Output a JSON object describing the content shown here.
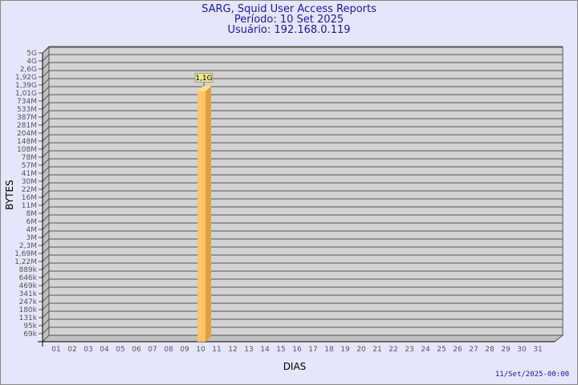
{
  "header": {
    "title": "SARG, Squid User Access Reports",
    "period": "Período: 10 Set 2025",
    "user": "Usuário: 192.168.0.119"
  },
  "footer": {
    "timestamp": "11/Set/2025-00:00"
  },
  "colors": {
    "background": "#e6e6fa",
    "plot": "#d3d3d3",
    "bar_front": "#ffc466",
    "bar_side": "#e0a040",
    "title": "#1a1aa6"
  },
  "chart_data": {
    "type": "bar",
    "title": "SARG, Squid User Access Reports",
    "xlabel": "DIAS",
    "ylabel": "BYTES",
    "yscale": "log",
    "categories": [
      "01",
      "02",
      "03",
      "04",
      "05",
      "06",
      "07",
      "08",
      "09",
      "10",
      "11",
      "12",
      "13",
      "14",
      "15",
      "16",
      "17",
      "18",
      "19",
      "20",
      "21",
      "22",
      "23",
      "24",
      "25",
      "26",
      "27",
      "28",
      "29",
      "30",
      "31"
    ],
    "yticks": [
      "5G",
      "4G",
      "2,6G",
      "1,92G",
      "1,39G",
      "1,01G",
      "734M",
      "533M",
      "387M",
      "281M",
      "204M",
      "148M",
      "108M",
      "78M",
      "57M",
      "41M",
      "30M",
      "22M",
      "16M",
      "11M",
      "8M",
      "6M",
      "4M",
      "3M",
      "2,3M",
      "1,69M",
      "1,22M",
      "889k",
      "646k",
      "469k",
      "341k",
      "247k",
      "180k",
      "131k",
      "95k",
      "69k"
    ],
    "bars": [
      {
        "category": "10",
        "label": "1,1G",
        "value_bytes": 1100000000
      }
    ],
    "grid": true,
    "legend": "none"
  }
}
